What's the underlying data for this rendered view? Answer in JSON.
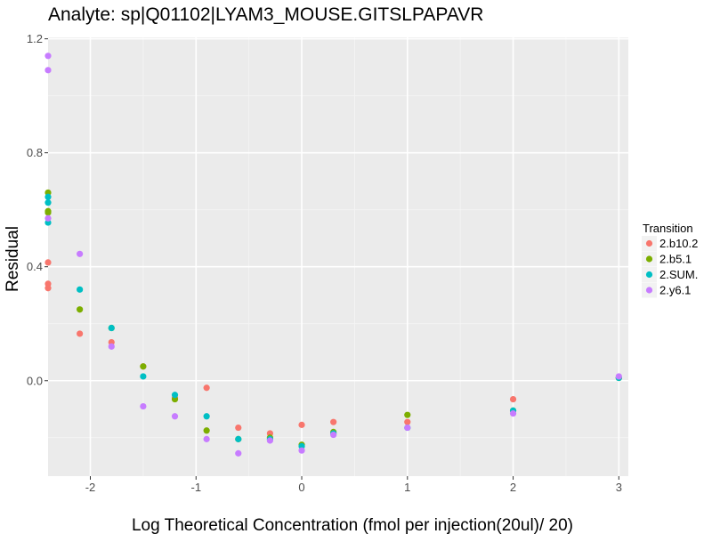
{
  "chart_data": {
    "type": "scatter",
    "title": "Analyte: sp|Q01102|LYAM3_MOUSE.GITSLPAPAVR",
    "xlabel": "Log Theoretical Concentration (fmol per injection(20ul)/ 20)",
    "ylabel": "Residual",
    "xlim": [
      -2.4,
      3.09
    ],
    "ylim": [
      -0.335,
      1.205
    ],
    "x_ticks": [
      -2,
      -1,
      0,
      1,
      2,
      3
    ],
    "x_tick_labels": [
      "-2",
      "-1",
      "0",
      "1",
      "2",
      "3"
    ],
    "y_ticks": [
      0.0,
      0.4,
      0.8,
      1.2
    ],
    "y_tick_labels": [
      "0.0",
      "0.4",
      "0.8",
      "1.2"
    ],
    "grid": true,
    "legend": {
      "title": "Transition",
      "position": "right"
    },
    "series": [
      {
        "name": "2.b10.2",
        "color": "#F8766D",
        "points": [
          [
            -2.4,
            0.415
          ],
          [
            -2.4,
            0.34
          ],
          [
            -2.4,
            0.325
          ],
          [
            -2.1,
            0.165
          ],
          [
            -1.8,
            0.135
          ],
          [
            -1.5,
            0.05
          ],
          [
            -1.2,
            -0.06
          ],
          [
            -0.9,
            -0.025
          ],
          [
            -0.6,
            -0.165
          ],
          [
            -0.3,
            -0.185
          ],
          [
            0.0,
            -0.155
          ],
          [
            0.3,
            -0.145
          ],
          [
            1.0,
            -0.145
          ],
          [
            2.0,
            -0.065
          ],
          [
            3.0,
            0.01
          ]
        ]
      },
      {
        "name": "2.b5.1",
        "color": "#7CAE00",
        "points": [
          [
            -2.4,
            0.66
          ],
          [
            -2.4,
            0.595
          ],
          [
            -2.4,
            0.59
          ],
          [
            -2.1,
            0.25
          ],
          [
            -1.8,
            0.185
          ],
          [
            -1.5,
            0.05
          ],
          [
            -1.2,
            -0.065
          ],
          [
            -0.9,
            -0.175
          ],
          [
            -0.6,
            -0.205
          ],
          [
            -0.3,
            -0.2
          ],
          [
            0.0,
            -0.225
          ],
          [
            0.3,
            -0.18
          ],
          [
            1.0,
            -0.12
          ],
          [
            2.0,
            -0.105
          ],
          [
            3.0,
            0.01
          ]
        ]
      },
      {
        "name": "2.SUM.",
        "color": "#00BFC4",
        "points": [
          [
            -2.4,
            0.645
          ],
          [
            -2.4,
            0.625
          ],
          [
            -2.4,
            0.555
          ],
          [
            -2.1,
            0.32
          ],
          [
            -1.8,
            0.185
          ],
          [
            -1.5,
            0.015
          ],
          [
            -1.2,
            -0.05
          ],
          [
            -0.9,
            -0.125
          ],
          [
            -0.6,
            -0.205
          ],
          [
            -0.3,
            -0.205
          ],
          [
            0.0,
            -0.23
          ],
          [
            0.3,
            -0.185
          ],
          [
            1.0,
            -0.165
          ],
          [
            2.0,
            -0.105
          ],
          [
            3.0,
            0.01
          ]
        ]
      },
      {
        "name": "2.y6.1",
        "color": "#C77CFF",
        "points": [
          [
            -2.4,
            1.14
          ],
          [
            -2.4,
            1.09
          ],
          [
            -2.4,
            0.57
          ],
          [
            -2.1,
            0.445
          ],
          [
            -1.8,
            0.12
          ],
          [
            -1.5,
            -0.09
          ],
          [
            -1.2,
            -0.125
          ],
          [
            -0.9,
            -0.205
          ],
          [
            -0.6,
            -0.255
          ],
          [
            -0.3,
            -0.21
          ],
          [
            0.0,
            -0.245
          ],
          [
            0.3,
            -0.19
          ],
          [
            1.0,
            -0.165
          ],
          [
            2.0,
            -0.115
          ],
          [
            3.0,
            0.015
          ]
        ]
      }
    ]
  }
}
